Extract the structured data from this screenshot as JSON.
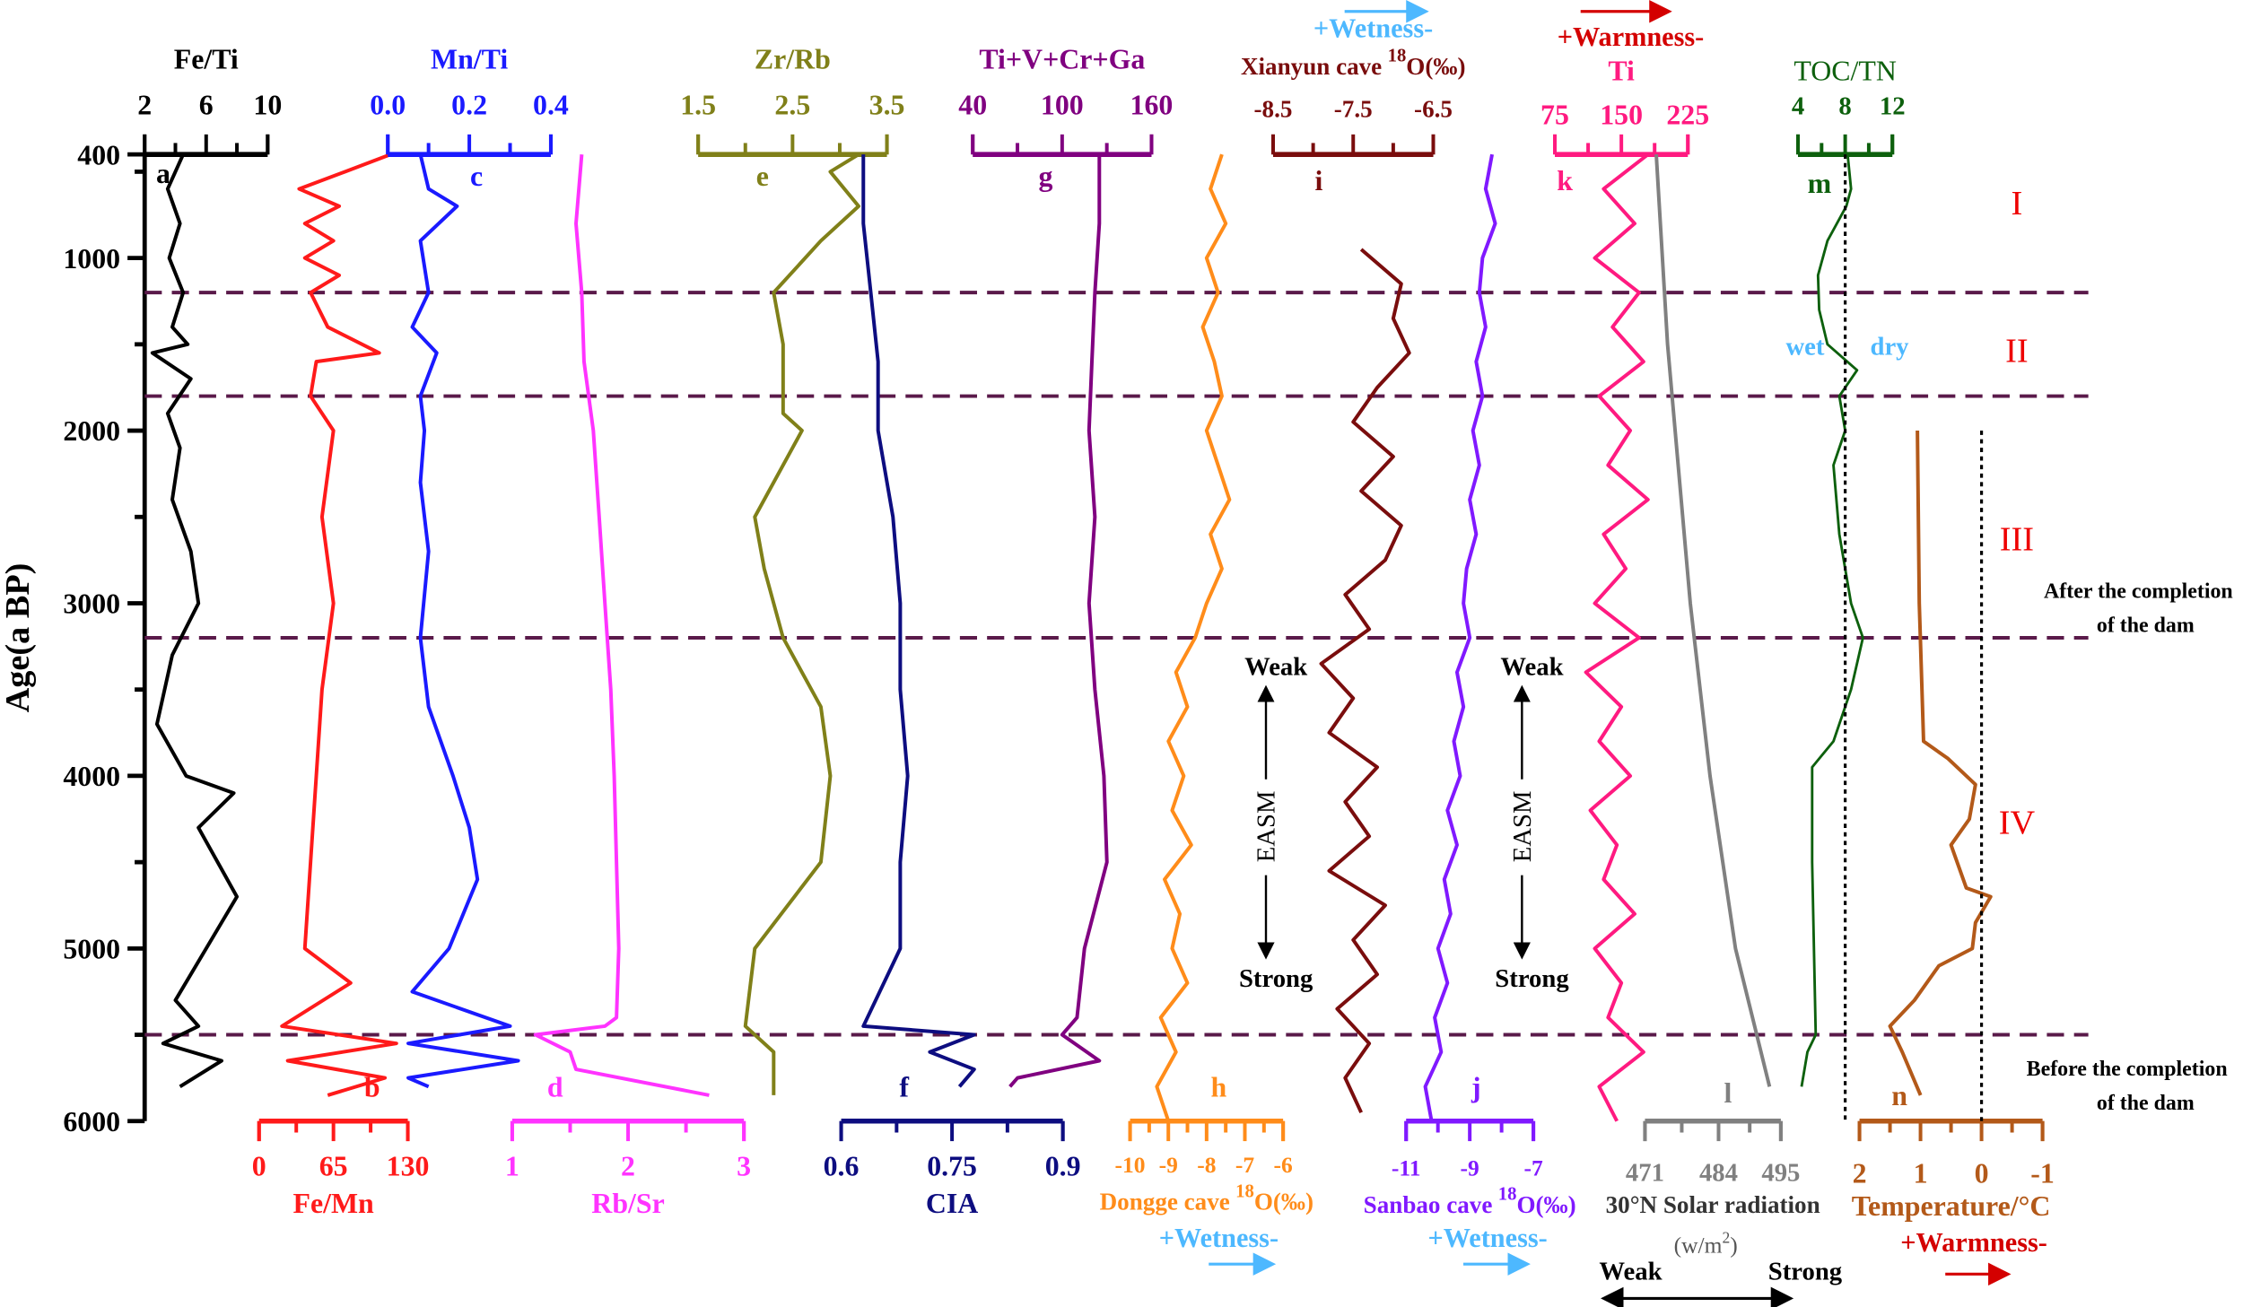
{
  "chart_data": {
    "type": "line",
    "title": "",
    "ylabel": "Age(a BP)",
    "ylim": [
      400,
      6000
    ],
    "yticks": [
      "400",
      "1000",
      "2000",
      "3000",
      "4000",
      "5000",
      "6000"
    ],
    "orientation": "vertical stratigraphic plot (age increases downward)",
    "boundaries_age": [
      1200,
      1800,
      3200,
      5500
    ],
    "series": [
      {
        "id": "a",
        "letter": "a",
        "title": "Fe/Ti",
        "color": "#000000",
        "range": [
          2,
          10
        ],
        "ticks": [
          "2",
          "6",
          "10"
        ],
        "points": [
          [
            400,
            4.5
          ],
          [
            600,
            3.5
          ],
          [
            800,
            4.3
          ],
          [
            1000,
            3.6
          ],
          [
            1200,
            4.5
          ],
          [
            1400,
            3.8
          ],
          [
            1500,
            4.8
          ],
          [
            1550,
            2.5
          ],
          [
            1700,
            5
          ],
          [
            1900,
            3.5
          ],
          [
            2100,
            4.3
          ],
          [
            2400,
            3.8
          ],
          [
            2700,
            5
          ],
          [
            3000,
            5.5
          ],
          [
            3300,
            3.8
          ],
          [
            3700,
            2.8
          ],
          [
            4000,
            4.7
          ],
          [
            4100,
            7.8
          ],
          [
            4300,
            5.5
          ],
          [
            4700,
            8
          ],
          [
            5000,
            6
          ],
          [
            5300,
            4
          ],
          [
            5450,
            5.5
          ],
          [
            5550,
            3.2
          ],
          [
            5650,
            7
          ],
          [
            5800,
            4.3
          ]
        ]
      },
      {
        "id": "b",
        "letter": "b",
        "title": "Fe/Mn",
        "color": "#ff1a1a",
        "range": [
          0,
          130
        ],
        "ticks": [
          "0",
          "65",
          "130"
        ],
        "points": [
          [
            400,
            115
          ],
          [
            500,
            75
          ],
          [
            600,
            35
          ],
          [
            700,
            70
          ],
          [
            800,
            40
          ],
          [
            900,
            65
          ],
          [
            1000,
            40
          ],
          [
            1100,
            70
          ],
          [
            1200,
            45
          ],
          [
            1400,
            60
          ],
          [
            1550,
            105
          ],
          [
            1600,
            50
          ],
          [
            1800,
            45
          ],
          [
            2000,
            65
          ],
          [
            2500,
            55
          ],
          [
            3000,
            65
          ],
          [
            3500,
            55
          ],
          [
            4000,
            50
          ],
          [
            4500,
            45
          ],
          [
            5000,
            40
          ],
          [
            5200,
            80
          ],
          [
            5450,
            20
          ],
          [
            5550,
            120
          ],
          [
            5650,
            25
          ],
          [
            5750,
            110
          ],
          [
            5850,
            60
          ]
        ]
      },
      {
        "id": "c",
        "letter": "c",
        "title": "Mn/Ti",
        "color": "#1a1aff",
        "range": [
          0,
          0.4
        ],
        "ticks": [
          "0.0",
          "0.2",
          "0.4"
        ],
        "points": [
          [
            400,
            0.08
          ],
          [
            600,
            0.1
          ],
          [
            700,
            0.17
          ],
          [
            900,
            0.08
          ],
          [
            1200,
            0.1
          ],
          [
            1400,
            0.06
          ],
          [
            1550,
            0.12
          ],
          [
            1800,
            0.08
          ],
          [
            2000,
            0.09
          ],
          [
            2300,
            0.08
          ],
          [
            2700,
            0.1
          ],
          [
            3200,
            0.08
          ],
          [
            3600,
            0.1
          ],
          [
            4000,
            0.16
          ],
          [
            4300,
            0.2
          ],
          [
            4600,
            0.22
          ],
          [
            5000,
            0.15
          ],
          [
            5250,
            0.06
          ],
          [
            5450,
            0.3
          ],
          [
            5550,
            0.05
          ],
          [
            5650,
            0.32
          ],
          [
            5750,
            0.05
          ],
          [
            5800,
            0.1
          ]
        ]
      },
      {
        "id": "d",
        "letter": "d",
        "title": "Rb/Sr",
        "color": "#ff33ff",
        "range": [
          1,
          3
        ],
        "ticks": [
          "1",
          "2",
          "3"
        ],
        "points": [
          [
            400,
            1.6
          ],
          [
            800,
            1.55
          ],
          [
            1200,
            1.6
          ],
          [
            1600,
            1.62
          ],
          [
            2000,
            1.7
          ],
          [
            2500,
            1.75
          ],
          [
            3000,
            1.8
          ],
          [
            3500,
            1.85
          ],
          [
            4000,
            1.88
          ],
          [
            4500,
            1.9
          ],
          [
            5000,
            1.92
          ],
          [
            5400,
            1.9
          ],
          [
            5450,
            1.8
          ],
          [
            5500,
            1.2
          ],
          [
            5600,
            1.5
          ],
          [
            5700,
            1.55
          ],
          [
            5850,
            2.7
          ]
        ]
      },
      {
        "id": "e",
        "letter": "e",
        "title": "Zr/Rb",
        "color": "#808019",
        "range": [
          1.5,
          3.5
        ],
        "ticks": [
          "1.5",
          "2.5",
          "3.5"
        ],
        "points": [
          [
            400,
            3.2
          ],
          [
            500,
            2.9
          ],
          [
            700,
            3.2
          ],
          [
            900,
            2.8
          ],
          [
            1200,
            2.3
          ],
          [
            1500,
            2.4
          ],
          [
            1900,
            2.4
          ],
          [
            2000,
            2.6
          ],
          [
            2500,
            2.1
          ],
          [
            2800,
            2.2
          ],
          [
            3200,
            2.4
          ],
          [
            3600,
            2.8
          ],
          [
            4000,
            2.9
          ],
          [
            4500,
            2.8
          ],
          [
            5000,
            2.1
          ],
          [
            5450,
            2.0
          ],
          [
            5600,
            2.3
          ],
          [
            5850,
            2.3
          ]
        ]
      },
      {
        "id": "f",
        "letter": "f",
        "title": "CIA",
        "color": "#0d0d80",
        "range": [
          0.6,
          0.9
        ],
        "ticks": [
          "0.6",
          "0.75",
          "0.9"
        ],
        "points": [
          [
            400,
            0.63
          ],
          [
            800,
            0.63
          ],
          [
            1200,
            0.64
          ],
          [
            1600,
            0.65
          ],
          [
            2000,
            0.65
          ],
          [
            2500,
            0.67
          ],
          [
            3000,
            0.68
          ],
          [
            3500,
            0.68
          ],
          [
            4000,
            0.69
          ],
          [
            4500,
            0.68
          ],
          [
            5000,
            0.68
          ],
          [
            5450,
            0.63
          ],
          [
            5500,
            0.78
          ],
          [
            5600,
            0.72
          ],
          [
            5700,
            0.78
          ],
          [
            5800,
            0.76
          ]
        ]
      },
      {
        "id": "g",
        "letter": "g",
        "title": "Ti+V+Cr+Ga",
        "color": "#800080",
        "range": [
          40,
          160
        ],
        "ticks": [
          "40",
          "100",
          "160"
        ],
        "points": [
          [
            400,
            125
          ],
          [
            800,
            125
          ],
          [
            1200,
            122
          ],
          [
            1600,
            120
          ],
          [
            2000,
            118
          ],
          [
            2500,
            122
          ],
          [
            3000,
            118
          ],
          [
            3500,
            122
          ],
          [
            4000,
            128
          ],
          [
            4500,
            130
          ],
          [
            5000,
            115
          ],
          [
            5400,
            110
          ],
          [
            5500,
            100
          ],
          [
            5650,
            125
          ],
          [
            5750,
            70
          ],
          [
            5800,
            65
          ]
        ]
      },
      {
        "id": "h",
        "letter": "h",
        "title": "Dongge cave",
        "title_sup": "18",
        "title_suffix": "O(‰)",
        "color": "#ff8c1a",
        "range": [
          -10,
          -6
        ],
        "ticks": [
          "-10",
          "-9",
          "-8",
          "-7",
          "-6"
        ],
        "age_start": 400,
        "age_step": 200,
        "values": [
          -7.6,
          -7.9,
          -7.5,
          -8.0,
          -7.7,
          -8.1,
          -7.8,
          -7.6,
          -8.0,
          -7.7,
          -7.4,
          -7.9,
          -7.6,
          -8.0,
          -8.3,
          -8.8,
          -8.5,
          -9.0,
          -8.6,
          -8.9,
          -8.4,
          -9.1,
          -8.7,
          -8.9,
          -8.5,
          -9.2,
          -8.8,
          -9.3,
          -9.0
        ]
      },
      {
        "id": "i",
        "letter": "i",
        "title": "Xianyun cave",
        "title_sup": "18",
        "title_suffix": "O(‰)",
        "color": "#7a0d0d",
        "range": [
          -8.5,
          -6.5
        ],
        "ticks": [
          "-8.5",
          "-7.5",
          "-6.5"
        ],
        "age_start": 950,
        "age_step": 200,
        "values": [
          -7.4,
          -6.9,
          -7.0,
          -6.8,
          -7.2,
          -7.5,
          -7.0,
          -7.4,
          -6.9,
          -7.1,
          -7.6,
          -7.3,
          -7.9,
          -7.5,
          -7.8,
          -7.2,
          -7.6,
          -7.3,
          -7.8,
          -7.1,
          -7.5,
          -7.2,
          -7.7,
          -7.3,
          -7.6,
          -7.4
        ]
      },
      {
        "id": "j",
        "letter": "j",
        "title": "Sanbao cave",
        "title_sup": "18",
        "title_suffix": "O(‰)",
        "color": "#8019ff",
        "range": [
          -11,
          -7
        ],
        "ticks": [
          "-11",
          "-9",
          "-7"
        ],
        "age_start": 400,
        "age_step": 200,
        "values": [
          -8.3,
          -8.5,
          -8.2,
          -8.6,
          -8.7,
          -8.5,
          -8.8,
          -8.6,
          -8.9,
          -8.7,
          -9.0,
          -8.8,
          -9.1,
          -9.2,
          -9.0,
          -9.4,
          -9.2,
          -9.5,
          -9.3,
          -9.7,
          -9.4,
          -9.8,
          -9.6,
          -10.0,
          -9.7,
          -10.1,
          -9.9,
          -10.4,
          -10.2
        ]
      },
      {
        "id": "k",
        "letter": "k",
        "title": "Ti",
        "color": "#ff1a80",
        "range": [
          75,
          225
        ],
        "ticks": [
          "75",
          "150",
          "225"
        ],
        "age_start": 400,
        "age_step": 200,
        "values": [
          180,
          130,
          165,
          120,
          170,
          140,
          175,
          125,
          160,
          135,
          180,
          130,
          155,
          120,
          170,
          110,
          150,
          125,
          160,
          115,
          145,
          130,
          165,
          120,
          150,
          135,
          175,
          125,
          145
        ]
      },
      {
        "id": "l",
        "letter": "l",
        "title": "30°N Solar radiation",
        "unit": "(w/m",
        "unit_sup": "2",
        "unit_suffix": ")",
        "color": "#808080",
        "range": [
          471,
          495
        ],
        "ticks": [
          "471",
          "484",
          "495"
        ],
        "points": [
          [
            400,
            473
          ],
          [
            1500,
            475
          ],
          [
            3000,
            479
          ],
          [
            4000,
            482.5
          ],
          [
            5000,
            487
          ],
          [
            5800,
            493
          ]
        ]
      },
      {
        "id": "m",
        "letter": "m",
        "title": "TOC/TN",
        "color": "#0d600d",
        "range": [
          4,
          12
        ],
        "ticks": [
          "4",
          "8",
          "12"
        ],
        "points": [
          [
            400,
            8.2
          ],
          [
            600,
            8.5
          ],
          [
            700,
            8.1
          ],
          [
            900,
            6.5
          ],
          [
            1100,
            5.7
          ],
          [
            1300,
            5.8
          ],
          [
            1500,
            6.5
          ],
          [
            1650,
            9
          ],
          [
            1800,
            7.5
          ],
          [
            2000,
            8
          ],
          [
            2200,
            7
          ],
          [
            2600,
            7.5
          ],
          [
            3000,
            8.5
          ],
          [
            3200,
            9.5
          ],
          [
            3500,
            8.5
          ],
          [
            3800,
            7
          ],
          [
            3950,
            5.2
          ],
          [
            4500,
            5.2
          ],
          [
            5500,
            5.5
          ],
          [
            5600,
            4.8
          ],
          [
            5800,
            4.3
          ]
        ]
      },
      {
        "id": "n",
        "letter": "n",
        "title": "Temperature/°C",
        "color": "#b35919",
        "range": [
          2,
          -1
        ],
        "ticks": [
          "2",
          "1",
          "0",
          "-1"
        ],
        "points": [
          [
            2000,
            1.05
          ],
          [
            3000,
            1.02
          ],
          [
            3800,
            0.95
          ],
          [
            3900,
            0.55
          ],
          [
            4050,
            0.1
          ],
          [
            4250,
            0.2
          ],
          [
            4400,
            0.5
          ],
          [
            4650,
            0.25
          ],
          [
            4700,
            -0.15
          ],
          [
            4850,
            0.1
          ],
          [
            5000,
            0.15
          ],
          [
            5100,
            0.7
          ],
          [
            5300,
            1.1
          ],
          [
            5450,
            1.5
          ],
          [
            5600,
            1.3
          ],
          [
            5850,
            1.0
          ]
        ]
      }
    ],
    "reference_lines": [
      {
        "series": "m",
        "value": 8
      },
      {
        "series": "n",
        "value": 0
      }
    ]
  },
  "annotations": {
    "zones": [
      "I",
      "II",
      "III",
      "IV"
    ],
    "wetness": "+Wetness-",
    "warmness": "+Warmness-",
    "after_dam": [
      "After the completion",
      "of the dam"
    ],
    "before_dam": [
      "Before the completion",
      "of the dam"
    ],
    "wet": "wet",
    "dry": "dry",
    "weak": "Weak",
    "strong": "Strong",
    "easm": "EASM"
  }
}
